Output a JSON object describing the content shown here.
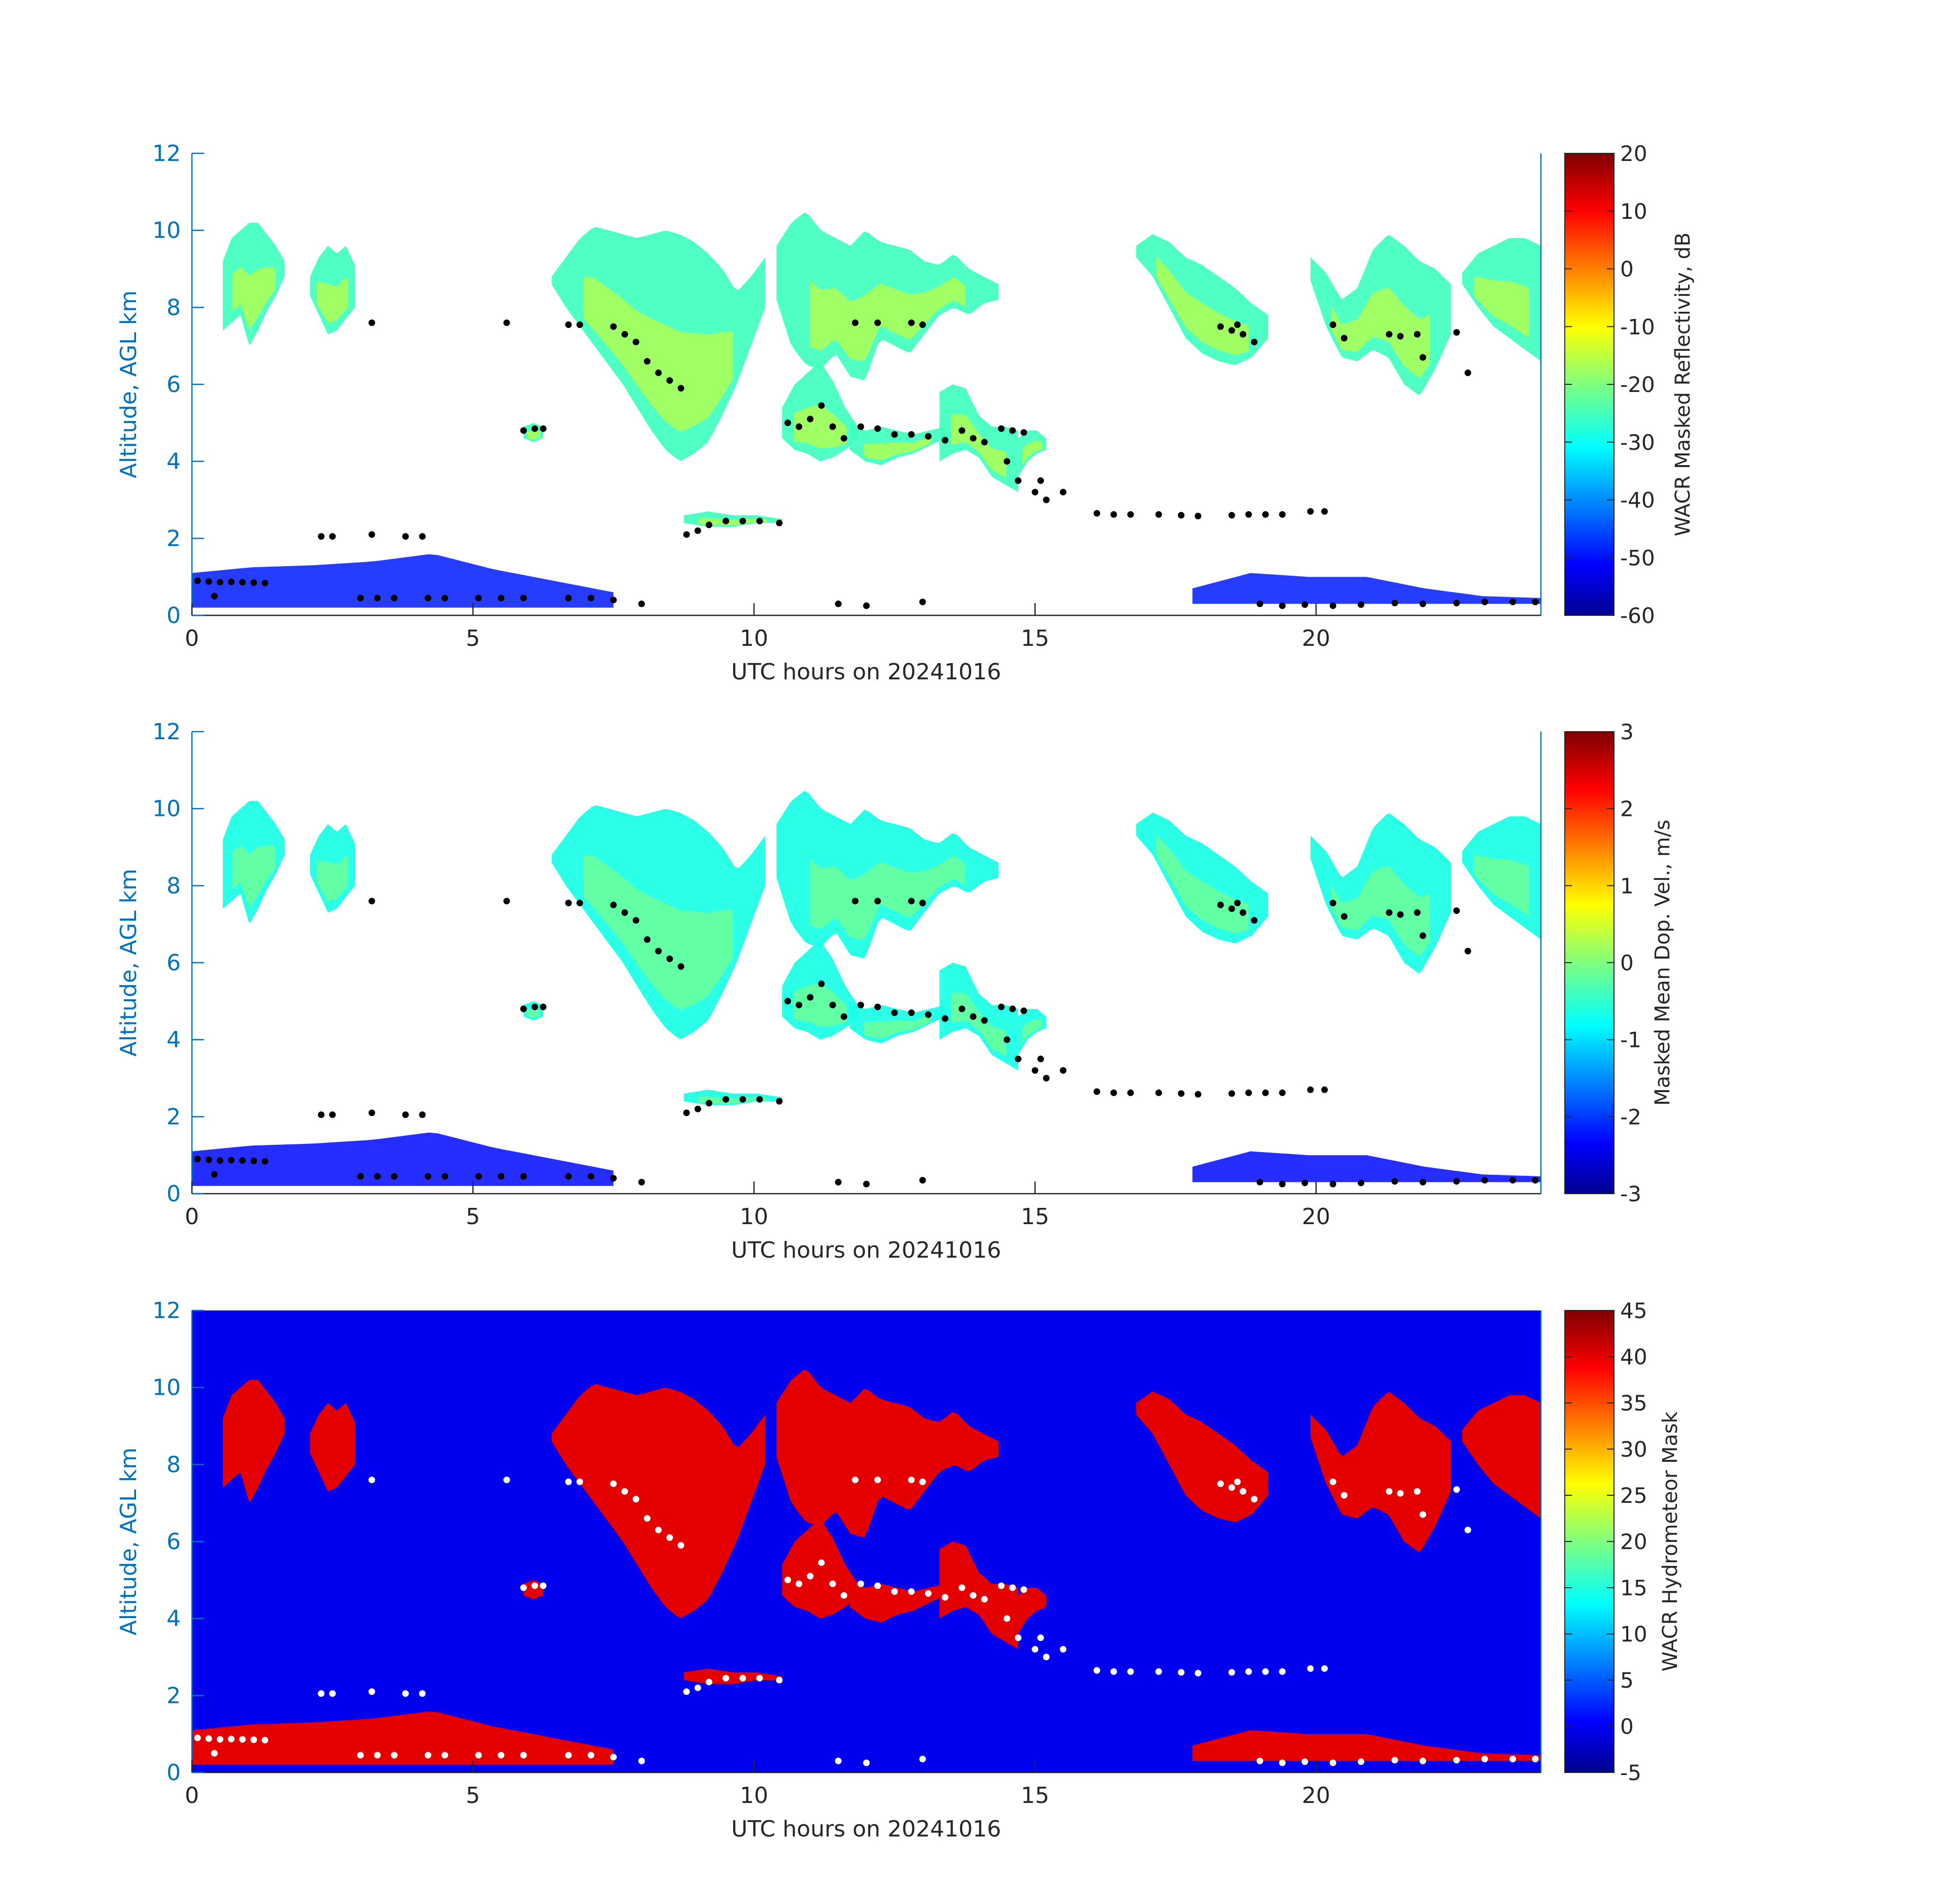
{
  "chart_data": [
    {
      "type": "heatmap",
      "panel": "reflectivity",
      "xlabel": "UTC hours on 20241016",
      "ylabel": "Altitude, AGL km",
      "xlim": [
        0,
        24
      ],
      "ylim": [
        0,
        12
      ],
      "xticks": [
        "0",
        "5",
        "10",
        "15",
        "20"
      ],
      "xtick_values": [
        0,
        5,
        10,
        15,
        20
      ],
      "yticks": [
        "0",
        "2",
        "4",
        "6",
        "8",
        "10",
        "12"
      ],
      "ytick_values": [
        0,
        2,
        4,
        6,
        8,
        10,
        12
      ],
      "background": "#ffffff",
      "colorbar": {
        "label": "WACR Masked Reflectivity, dB",
        "range": [
          -60,
          20
        ],
        "ticks": [
          "20",
          "10",
          "0",
          "-10",
          "-20",
          "-30",
          "-40",
          "-50",
          "-60"
        ],
        "tick_values": [
          20,
          10,
          0,
          -10,
          -20,
          -30,
          -40,
          -50,
          -60
        ],
        "colormap": "jet"
      },
      "cloud_field_value": -25,
      "cloud_core_value": -12,
      "low_cloud_value": -48
    },
    {
      "type": "heatmap",
      "panel": "velocity",
      "xlabel": "UTC hours on 20241016",
      "ylabel": "Altitude, AGL km",
      "xlim": [
        0,
        24
      ],
      "ylim": [
        0,
        12
      ],
      "xticks": [
        "0",
        "5",
        "10",
        "15",
        "20"
      ],
      "xtick_values": [
        0,
        5,
        10,
        15,
        20
      ],
      "yticks": [
        "0",
        "2",
        "4",
        "6",
        "8",
        "10",
        "12"
      ],
      "ytick_values": [
        0,
        2,
        4,
        6,
        8,
        10,
        12
      ],
      "background": "#ffffff",
      "colorbar": {
        "label": "Masked Mean Dop. Vel., m/s",
        "range": [
          -3,
          3
        ],
        "ticks": [
          "3",
          "2",
          "1",
          "0",
          "-1",
          "-2",
          "-3"
        ],
        "tick_values": [
          3,
          2,
          1,
          0,
          -1,
          -2,
          -3
        ],
        "colormap": "jet"
      },
      "cloud_field_value": -0.6,
      "cloud_core_value": 0.1,
      "low_cloud_value": -2.2
    },
    {
      "type": "heatmap",
      "panel": "mask",
      "xlabel": "UTC hours on 20241016",
      "ylabel": "Altitude, AGL km",
      "xlim": [
        0,
        24
      ],
      "ylim": [
        0,
        12
      ],
      "xticks": [
        "0",
        "5",
        "10",
        "15",
        "20"
      ],
      "xtick_values": [
        0,
        5,
        10,
        15,
        20
      ],
      "yticks": [
        "0",
        "2",
        "4",
        "6",
        "8",
        "10",
        "12"
      ],
      "ytick_values": [
        0,
        2,
        4,
        6,
        8,
        10,
        12
      ],
      "background": "#0000ee",
      "colorbar": {
        "label": "WACR Hydrometeor Mask",
        "range": [
          -5,
          45
        ],
        "ticks": [
          "45",
          "40",
          "35",
          "30",
          "25",
          "20",
          "15",
          "10",
          "5",
          "0",
          "-5"
        ],
        "tick_values": [
          45,
          40,
          35,
          30,
          25,
          20,
          15,
          10,
          5,
          0,
          -5
        ],
        "colormap": "jet"
      },
      "cloud_field_value": 40,
      "cloud_core_value": 40,
      "low_cloud_value": 40
    }
  ],
  "cloud_regions": [
    {
      "t0": 0.55,
      "t1": 1.65,
      "base": [
        7.4,
        7.6,
        7.8,
        7.0,
        7.4,
        7.9,
        8.3,
        8.8
      ],
      "top": [
        9.2,
        9.8,
        10.0,
        10.2,
        10.2,
        9.9,
        9.6,
        9.2
      ]
    },
    {
      "t0": 2.1,
      "t1": 2.9,
      "base": [
        8.3,
        7.8,
        7.3,
        7.4,
        7.7,
        8.0
      ],
      "top": [
        8.8,
        9.3,
        9.6,
        9.4,
        9.6,
        9.1
      ]
    },
    {
      "t0": 6.4,
      "t1": 10.2,
      "base": [
        8.6,
        8.0,
        7.5,
        7.0,
        6.5,
        6.0,
        5.4,
        4.8,
        4.3,
        4.0,
        4.2,
        4.5,
        5.2,
        6.0,
        7.0,
        8.0
      ],
      "top": [
        8.8,
        9.3,
        9.8,
        10.1,
        10.0,
        9.9,
        9.8,
        9.9,
        10.0,
        9.9,
        9.7,
        9.4,
        9.0,
        8.4,
        8.8,
        9.3
      ]
    },
    {
      "t0": 10.4,
      "t1": 14.35,
      "base": [
        8.2,
        7.0,
        6.5,
        6.4,
        6.8,
        6.2,
        6.1,
        7.2,
        7.0,
        6.8,
        7.3,
        7.8,
        8.0,
        7.8,
        8.1,
        8.2
      ],
      "top": [
        9.6,
        10.2,
        10.5,
        10.0,
        9.8,
        9.6,
        10.0,
        9.7,
        9.6,
        9.5,
        9.2,
        9.1,
        9.4,
        9.0,
        8.8,
        8.6
      ]
    },
    {
      "t0": 10.5,
      "t1": 11.85,
      "base": [
        4.6,
        4.3,
        4.2,
        4.0,
        4.1,
        4.3,
        4.6
      ],
      "top": [
        5.4,
        6.0,
        6.3,
        6.6,
        6.1,
        5.4,
        4.9
      ]
    },
    {
      "t0": 11.7,
      "t1": 13.4,
      "base": [
        4.3,
        4.0,
        3.9,
        4.1,
        4.2,
        4.4,
        4.6
      ],
      "top": [
        5.0,
        4.8,
        4.9,
        4.8,
        4.7,
        4.8,
        4.9
      ]
    },
    {
      "t0": 13.3,
      "t1": 14.7,
      "base": [
        4.0,
        4.2,
        4.3,
        4.1,
        3.6,
        3.4,
        3.2
      ],
      "top": [
        5.8,
        6.0,
        5.9,
        5.2,
        4.9,
        4.9,
        4.8
      ]
    },
    {
      "t0": 14.7,
      "t1": 15.2,
      "base": [
        3.6,
        4.0,
        4.2,
        4.3
      ],
      "top": [
        4.6,
        4.8,
        4.8,
        4.6
      ]
    },
    {
      "t0": 5.9,
      "t1": 6.25,
      "base": [
        4.6,
        4.5,
        4.6
      ],
      "top": [
        4.9,
        5.0,
        4.9
      ]
    },
    {
      "t0": 8.75,
      "t1": 10.5,
      "base": [
        2.4,
        2.3,
        2.3,
        2.4,
        2.4
      ],
      "top": [
        2.6,
        2.7,
        2.6,
        2.6,
        2.5
      ]
    },
    {
      "t0": 16.8,
      "t1": 19.15,
      "base": [
        9.3,
        8.8,
        8.0,
        7.2,
        6.8,
        6.6,
        6.5,
        6.7,
        7.2
      ],
      "top": [
        9.6,
        9.9,
        9.7,
        9.3,
        9.1,
        8.8,
        8.5,
        8.1,
        7.8
      ]
    },
    {
      "t0": 19.9,
      "t1": 22.4,
      "base": [
        8.7,
        7.5,
        6.7,
        6.6,
        6.9,
        6.7,
        6.0,
        5.7,
        6.4,
        7.3
      ],
      "top": [
        9.3,
        8.9,
        8.2,
        8.5,
        9.5,
        9.9,
        9.6,
        9.2,
        9.0,
        8.6
      ]
    },
    {
      "t0": 22.6,
      "t1": 24.0,
      "base": [
        8.6,
        8.0,
        7.5,
        7.2,
        6.9,
        6.6
      ],
      "top": [
        8.9,
        9.4,
        9.6,
        9.8,
        9.8,
        9.6
      ]
    }
  ],
  "low_cloud_regions": [
    {
      "t0": 0.0,
      "t1": 7.5,
      "base": [
        0.2,
        0.2,
        0.2,
        0.2,
        0.2,
        0.2,
        0.2,
        0.2
      ],
      "top": [
        1.1,
        1.25,
        1.3,
        1.4,
        1.6,
        1.2,
        0.9,
        0.6
      ]
    },
    {
      "t0": 17.8,
      "t1": 24.0,
      "base": [
        0.3,
        0.3,
        0.3,
        0.3,
        0.3,
        0.3,
        0.3
      ],
      "top": [
        0.7,
        1.1,
        1.0,
        1.0,
        0.7,
        0.5,
        0.45
      ]
    }
  ],
  "cloud_base_points": [
    [
      0.1,
      0.9
    ],
    [
      0.3,
      0.88
    ],
    [
      0.5,
      0.86
    ],
    [
      0.7,
      0.87
    ],
    [
      0.9,
      0.86
    ],
    [
      1.1,
      0.85
    ],
    [
      1.3,
      0.84
    ],
    [
      0.4,
      0.5
    ],
    [
      3.0,
      0.45
    ],
    [
      3.3,
      0.45
    ],
    [
      3.6,
      0.45
    ],
    [
      4.2,
      0.45
    ],
    [
      4.5,
      0.45
    ],
    [
      5.1,
      0.45
    ],
    [
      5.5,
      0.45
    ],
    [
      5.9,
      0.45
    ],
    [
      6.7,
      0.45
    ],
    [
      7.1,
      0.45
    ],
    [
      7.5,
      0.4
    ],
    [
      8.0,
      0.3
    ],
    [
      11.5,
      0.3
    ],
    [
      12.0,
      0.25
    ],
    [
      13.0,
      0.35
    ],
    [
      2.3,
      2.05
    ],
    [
      2.5,
      2.05
    ],
    [
      3.2,
      2.1
    ],
    [
      3.8,
      2.05
    ],
    [
      4.1,
      2.05
    ],
    [
      3.2,
      7.6
    ],
    [
      5.6,
      7.6
    ],
    [
      6.7,
      7.55
    ],
    [
      6.9,
      7.55
    ],
    [
      5.9,
      4.8
    ],
    [
      6.1,
      4.85
    ],
    [
      6.25,
      4.85
    ],
    [
      7.5,
      7.5
    ],
    [
      7.7,
      7.3
    ],
    [
      7.9,
      7.1
    ],
    [
      8.1,
      6.6
    ],
    [
      8.3,
      6.3
    ],
    [
      8.5,
      6.1
    ],
    [
      8.7,
      5.9
    ],
    [
      8.8,
      2.1
    ],
    [
      9.0,
      2.2
    ],
    [
      9.2,
      2.35
    ],
    [
      9.5,
      2.45
    ],
    [
      9.8,
      2.45
    ],
    [
      10.1,
      2.45
    ],
    [
      10.45,
      2.4
    ],
    [
      10.6,
      5.0
    ],
    [
      10.8,
      4.9
    ],
    [
      11.0,
      5.1
    ],
    [
      11.2,
      5.45
    ],
    [
      11.4,
      4.9
    ],
    [
      11.6,
      4.6
    ],
    [
      11.9,
      4.9
    ],
    [
      12.2,
      4.85
    ],
    [
      12.5,
      4.7
    ],
    [
      12.8,
      4.7
    ],
    [
      13.1,
      4.65
    ],
    [
      13.4,
      4.55
    ],
    [
      13.7,
      4.8
    ],
    [
      13.9,
      4.6
    ],
    [
      14.1,
      4.5
    ],
    [
      11.8,
      7.6
    ],
    [
      12.2,
      7.6
    ],
    [
      12.8,
      7.6
    ],
    [
      13.0,
      7.55
    ],
    [
      14.4,
      4.85
    ],
    [
      14.6,
      4.8
    ],
    [
      14.8,
      4.75
    ],
    [
      14.5,
      4.0
    ],
    [
      14.7,
      3.5
    ],
    [
      15.0,
      3.2
    ],
    [
      15.2,
      3.0
    ],
    [
      15.5,
      3.2
    ],
    [
      15.1,
      3.5
    ],
    [
      16.1,
      2.65
    ],
    [
      16.4,
      2.62
    ],
    [
      16.7,
      2.62
    ],
    [
      17.2,
      2.62
    ],
    [
      17.6,
      2.6
    ],
    [
      17.9,
      2.58
    ],
    [
      18.5,
      2.6
    ],
    [
      18.8,
      2.62
    ],
    [
      19.1,
      2.62
    ],
    [
      19.4,
      2.62
    ],
    [
      19.9,
      2.7
    ],
    [
      20.15,
      2.7
    ],
    [
      18.3,
      7.5
    ],
    [
      18.5,
      7.4
    ],
    [
      18.7,
      7.3
    ],
    [
      18.9,
      7.1
    ],
    [
      18.6,
      7.55
    ],
    [
      20.3,
      7.55
    ],
    [
      20.5,
      7.2
    ],
    [
      21.3,
      7.3
    ],
    [
      21.5,
      7.25
    ],
    [
      21.8,
      7.3
    ],
    [
      21.9,
      6.7
    ],
    [
      22.5,
      7.35
    ],
    [
      22.7,
      6.3
    ],
    [
      19.0,
      0.3
    ],
    [
      19.4,
      0.25
    ],
    [
      19.8,
      0.28
    ],
    [
      20.3,
      0.25
    ],
    [
      20.8,
      0.28
    ],
    [
      21.4,
      0.32
    ],
    [
      21.9,
      0.3
    ],
    [
      22.5,
      0.32
    ],
    [
      23.0,
      0.35
    ],
    [
      23.5,
      0.35
    ],
    [
      23.9,
      0.35
    ]
  ]
}
